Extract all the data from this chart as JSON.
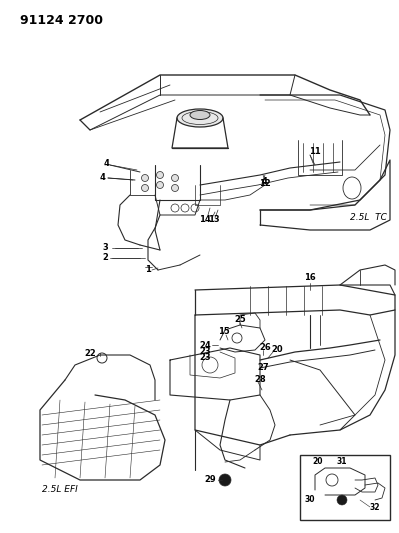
{
  "title": "91124 2700",
  "label_25L_TC": "2.5L  TC",
  "label_25L_EFI": "2.5L EFI",
  "bg_color": "#ffffff",
  "line_color": "#2a2a2a",
  "text_color": "#000000",
  "title_fontsize": 9,
  "label_fontsize": 6.5,
  "part_label_fontsize": 6,
  "fig_width": 3.99,
  "fig_height": 5.33,
  "dpi": 100
}
